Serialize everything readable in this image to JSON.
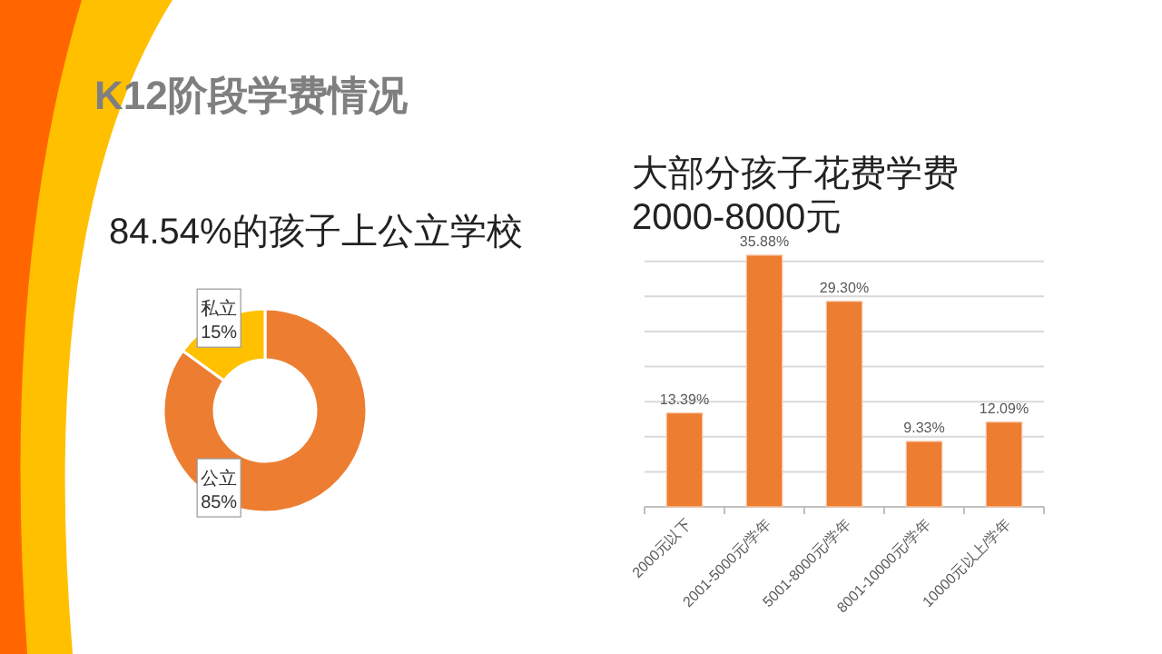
{
  "chart_data": [
    {
      "type": "donut",
      "title": "84.54%的孩子上公立学校",
      "annotations": [
        "K12阶段学费情况"
      ],
      "categories": [
        "公立",
        "私立"
      ],
      "values": [
        85,
        15
      ],
      "colors": [
        "#ed7d31",
        "#ffc000"
      ],
      "value_labels": [
        "85%",
        "15%"
      ]
    },
    {
      "type": "bar",
      "title": "大部分孩子花费学费2000-8000元",
      "categories": [
        "2000元以下",
        "2001-5000元/学年",
        "5001-8000元/学年",
        "8001-10000元/学年",
        "10000元以上/学年"
      ],
      "values": [
        13.39,
        35.88,
        29.3,
        9.33,
        12.09
      ],
      "color": "#ed7d31",
      "data_labels": true,
      "value_labels": [
        "13.39%",
        "35.88%",
        "29.30%",
        "9.33%",
        "12.09%"
      ],
      "ylim": [
        0,
        36
      ],
      "yticks": [
        {
          "value": 0,
          "label": null
        },
        {
          "value": 5,
          "label": null
        },
        {
          "value": 10,
          "label": null
        },
        {
          "value": 15,
          "label": null
        },
        {
          "value": 20,
          "label": null
        },
        {
          "value": 25,
          "label": null
        },
        {
          "value": 30,
          "label": null
        },
        {
          "value": 35,
          "label": null
        }
      ],
      "grid": "y",
      "tick_labels": "x"
    }
  ]
}
